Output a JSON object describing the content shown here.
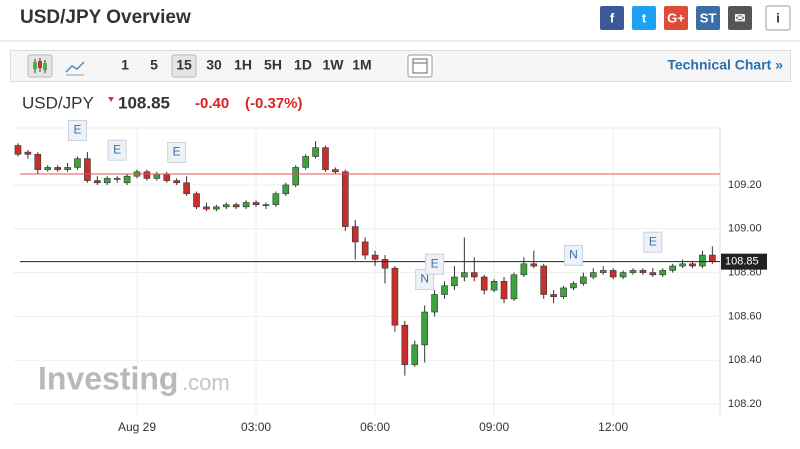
{
  "header": {
    "title": "USD/JPY Overview",
    "social": [
      "f",
      "t",
      "G+",
      "ST",
      "✉",
      "i"
    ]
  },
  "toolbar": {
    "intervals": [
      "1",
      "5",
      "15",
      "30",
      "1H",
      "5H",
      "1D",
      "1W",
      "1M"
    ],
    "active": "15",
    "link": "Technical Chart »"
  },
  "quote": {
    "symbol": "USD/JPY",
    "price": "108.85",
    "change": "-0.40",
    "change_pct": "(-0.37%)"
  },
  "watermark": {
    "brand": "Investing",
    "suffix": ".com"
  },
  "chart_data": {
    "type": "candlestick",
    "categories": [
      null,
      null,
      null,
      null,
      null,
      null,
      null,
      null,
      null,
      null,
      null,
      null,
      "Aug 29",
      null,
      null,
      null,
      null,
      null,
      null,
      null,
      null,
      null,
      null,
      null,
      "03:00",
      null,
      null,
      null,
      null,
      null,
      null,
      null,
      null,
      null,
      null,
      null,
      "06:00",
      null,
      null,
      null,
      null,
      null,
      null,
      null,
      null,
      null,
      null,
      null,
      "09:00",
      null,
      null,
      null,
      null,
      null,
      null,
      null,
      null,
      null,
      null,
      null,
      "12:00",
      null,
      null,
      null,
      null,
      null,
      null,
      null,
      null,
      null,
      null
    ],
    "open": [
      109.38,
      109.35,
      109.34,
      109.27,
      109.28,
      109.27,
      109.28,
      109.32,
      109.22,
      109.21,
      109.23,
      109.21,
      109.24,
      109.26,
      109.23,
      109.25,
      109.22,
      109.21,
      109.16,
      109.1,
      109.09,
      109.1,
      109.11,
      109.1,
      109.12,
      109.11,
      109.11,
      109.16,
      109.2,
      109.28,
      109.33,
      109.37,
      109.27,
      109.26,
      109.01,
      108.94,
      108.88,
      108.86,
      108.82,
      108.56,
      108.38,
      108.47,
      108.62,
      108.7,
      108.74,
      108.78,
      108.8,
      108.78,
      108.72,
      108.76,
      108.68,
      108.79,
      108.84,
      108.83,
      108.7,
      108.69,
      108.73,
      108.75,
      108.78,
      108.8,
      108.81,
      108.78,
      108.8,
      108.81,
      108.8,
      108.79,
      108.81,
      108.83,
      108.84,
      108.83,
      108.88
    ],
    "high": [
      109.39,
      109.36,
      109.35,
      109.29,
      109.29,
      109.3,
      109.33,
      109.35,
      109.24,
      109.24,
      109.24,
      109.25,
      109.27,
      109.27,
      109.26,
      109.26,
      109.23,
      109.24,
      109.17,
      109.12,
      109.11,
      109.12,
      109.12,
      109.13,
      109.13,
      109.12,
      109.17,
      109.21,
      109.29,
      109.34,
      109.4,
      109.38,
      109.28,
      109.27,
      109.04,
      108.96,
      108.9,
      108.88,
      108.83,
      108.58,
      108.49,
      108.65,
      108.72,
      108.76,
      108.83,
      108.96,
      108.87,
      108.79,
      108.77,
      108.78,
      108.8,
      108.87,
      108.9,
      108.84,
      108.72,
      108.74,
      108.76,
      108.8,
      108.82,
      108.83,
      108.82,
      108.81,
      108.82,
      108.82,
      108.82,
      108.82,
      108.84,
      108.86,
      108.85,
      108.9,
      108.92
    ],
    "low": [
      109.33,
      109.32,
      109.25,
      109.26,
      109.26,
      109.26,
      109.27,
      109.21,
      109.2,
      109.2,
      109.21,
      109.2,
      109.23,
      109.22,
      109.22,
      109.21,
      109.2,
      109.15,
      109.09,
      109.08,
      109.08,
      109.09,
      109.09,
      109.09,
      109.1,
      109.09,
      109.1,
      109.15,
      109.19,
      109.27,
      109.32,
      109.26,
      109.25,
      108.99,
      108.86,
      108.86,
      108.83,
      108.75,
      108.53,
      108.33,
      108.37,
      108.39,
      108.6,
      108.68,
      108.72,
      108.76,
      108.76,
      108.7,
      108.71,
      108.66,
      108.67,
      108.78,
      108.82,
      108.68,
      108.66,
      108.68,
      108.72,
      108.74,
      108.77,
      108.79,
      108.77,
      108.77,
      108.79,
      108.79,
      108.78,
      108.78,
      108.8,
      108.82,
      108.82,
      108.82,
      108.84
    ],
    "close": [
      109.34,
      109.34,
      109.27,
      109.28,
      109.27,
      109.28,
      109.32,
      109.22,
      109.21,
      109.23,
      109.23,
      109.24,
      109.26,
      109.23,
      109.25,
      109.22,
      109.21,
      109.16,
      109.1,
      109.09,
      109.1,
      109.11,
      109.1,
      109.12,
      109.11,
      109.11,
      109.16,
      109.2,
      109.28,
      109.33,
      109.37,
      109.27,
      109.26,
      109.01,
      108.94,
      108.88,
      108.86,
      108.82,
      108.56,
      108.38,
      108.47,
      108.62,
      108.7,
      108.74,
      108.78,
      108.8,
      108.78,
      108.72,
      108.76,
      108.68,
      108.79,
      108.84,
      108.83,
      108.7,
      108.69,
      108.73,
      108.75,
      108.78,
      108.8,
      108.81,
      108.78,
      108.8,
      108.81,
      108.8,
      108.79,
      108.81,
      108.83,
      108.84,
      108.83,
      108.88,
      108.85
    ],
    "up_color": "#3ea33e",
    "down_color": "#c9302c",
    "ylim": [
      108.15,
      109.46
    ],
    "yticks": [
      {
        "value": 108.2,
        "label": "108.20"
      },
      {
        "value": 108.4,
        "label": "108.40"
      },
      {
        "value": 108.6,
        "label": "108.60"
      },
      {
        "value": 108.8,
        "label": "108.80"
      },
      {
        "value": 109.0,
        "label": "109.00"
      },
      {
        "value": 109.2,
        "label": "109.20"
      }
    ],
    "lines": [
      {
        "value": 109.25,
        "color": "#e05555"
      },
      {
        "value": 108.85,
        "color": "#222222",
        "label": "108.85"
      }
    ],
    "events": [
      {
        "index": 6,
        "label": "E"
      },
      {
        "index": 10,
        "label": "E"
      },
      {
        "index": 16,
        "label": "E"
      },
      {
        "index": 41,
        "label": "N"
      },
      {
        "index": 42,
        "label": "E"
      },
      {
        "index": 56,
        "label": "N"
      },
      {
        "index": 64,
        "label": "E"
      }
    ]
  }
}
